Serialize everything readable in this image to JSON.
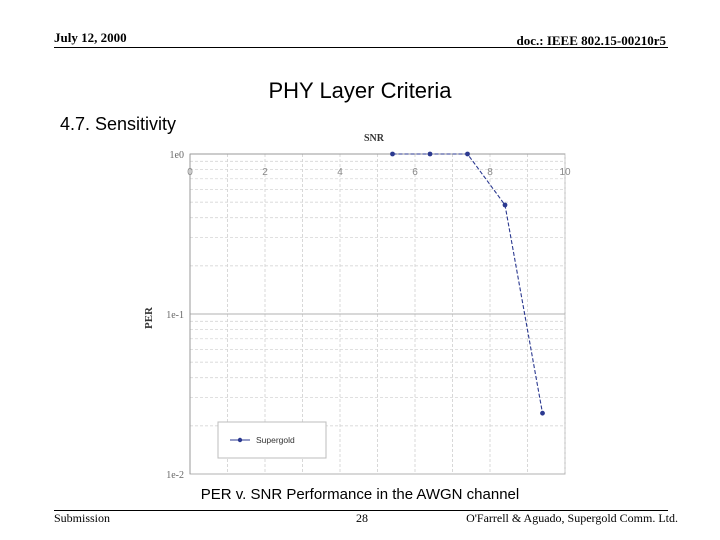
{
  "header": {
    "date": "July 12, 2000",
    "doc_id": "doc.: IEEE 802.15-00210r5"
  },
  "slide": {
    "title": "PHY Layer Criteria",
    "section": "4.7. Sensitivity",
    "caption": "PER v. SNR Performance in the AWGN channel"
  },
  "footer": {
    "left": "Submission",
    "page": "28",
    "right": "O'Farrell & Aguado, Supergold Comm. Ltd."
  },
  "chart_data": {
    "type": "line",
    "title": "SNR",
    "xlabel": "",
    "ylabel": "PER",
    "xlim": [
      0,
      10
    ],
    "ylim": [
      0.01,
      1
    ],
    "yscale": "log",
    "x_ticks": [
      0,
      2,
      4,
      6,
      8,
      10
    ],
    "y_ticks": [
      1,
      0.1,
      0.01
    ],
    "y_tick_labels": [
      "1e0",
      "1e-1",
      "1e-2"
    ],
    "x_axis_position": "top",
    "grid": true,
    "legend": "bottom-left",
    "series": [
      {
        "name": "Supergold",
        "color": "#2b3990",
        "line_style": "dashed",
        "x": [
          5.4,
          6.4,
          7.4,
          8.4,
          9.4
        ],
        "y": [
          1.0,
          1.0,
          1.0,
          0.48,
          0.024
        ]
      }
    ]
  }
}
